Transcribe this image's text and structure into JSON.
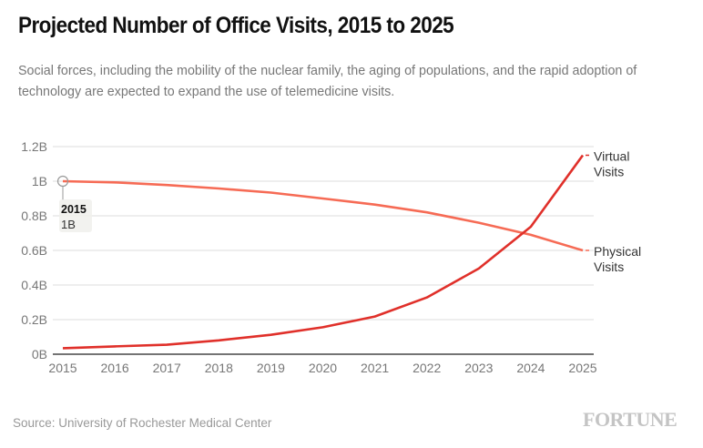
{
  "header": {
    "title": "Projected Number of Office Visits, 2015 to 2025",
    "subtitle": "Social forces, including the mobility of the nuclear family, the aging of populations, and the rapid adoption of technology are expected to expand the use of telemedicine visits."
  },
  "footer": {
    "source": "Source: University of Rochester Medical Center",
    "brand": "FORTUNE"
  },
  "tooltip": {
    "label": "2015",
    "value": "1B"
  },
  "colors": {
    "virtual": "#e0302a",
    "physical": "#f66b55",
    "grid": "#dcdcdc",
    "axis": "#222222",
    "tick": "#777777"
  },
  "chart_data": {
    "type": "line",
    "title": "Projected Number of Office Visits, 2015 to 2025",
    "xlabel": "",
    "ylabel": "",
    "x": [
      2015,
      2016,
      2017,
      2018,
      2019,
      2020,
      2021,
      2022,
      2023,
      2024,
      2025
    ],
    "xticks": [
      "2015",
      "2016",
      "2017",
      "2018",
      "2019",
      "2020",
      "2021",
      "2022",
      "2023",
      "2024",
      "2025"
    ],
    "yticks": [
      "0B",
      "0.2B",
      "0.4B",
      "0.6B",
      "0.8B",
      "1B",
      "1.2B"
    ],
    "ytick_values": [
      0,
      0.2,
      0.4,
      0.6,
      0.8,
      1.0,
      1.2
    ],
    "ylim": [
      0,
      1.2
    ],
    "grid": true,
    "legend": "inline-right",
    "series": [
      {
        "name": "Virtual Visits",
        "label_lines": [
          "Virtual",
          "Visits"
        ],
        "values": [
          0.035,
          0.045,
          0.055,
          0.08,
          0.112,
          0.156,
          0.218,
          0.328,
          0.495,
          0.737,
          1.15
        ]
      },
      {
        "name": "Physical Visits",
        "label_lines": [
          "Physical",
          "Visits"
        ],
        "values": [
          1.0,
          0.993,
          0.978,
          0.958,
          0.934,
          0.9,
          0.865,
          0.82,
          0.76,
          0.69,
          0.6
        ]
      }
    ],
    "annotations": [
      {
        "x": 2015,
        "series": "Physical Visits",
        "text": "2015",
        "subtext": "1B"
      }
    ]
  }
}
